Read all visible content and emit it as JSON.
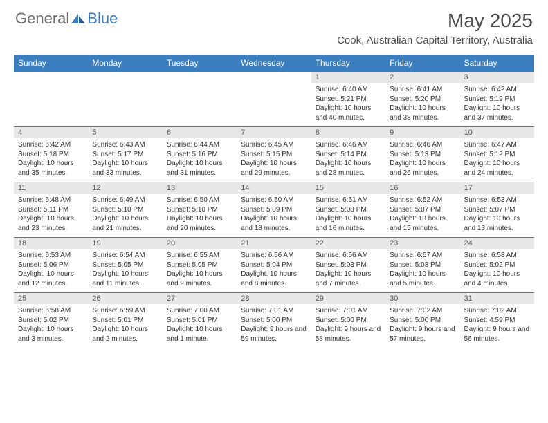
{
  "logo": {
    "text1": "General",
    "text2": "Blue"
  },
  "title": "May 2025",
  "location": "Cook, Australian Capital Territory, Australia",
  "colors": {
    "header_bg": "#3b7ec0",
    "header_text": "#ffffff",
    "daynum_bg": "#e8e8e8",
    "row_divider": "#3b7ec0",
    "logo_grey": "#6b6b6b",
    "logo_blue": "#3b7ec0"
  },
  "weekdays": [
    "Sunday",
    "Monday",
    "Tuesday",
    "Wednesday",
    "Thursday",
    "Friday",
    "Saturday"
  ],
  "weeks": [
    [
      null,
      null,
      null,
      null,
      {
        "n": "1",
        "sr": "6:40 AM",
        "ss": "5:21 PM",
        "dl": "10 hours and 40 minutes."
      },
      {
        "n": "2",
        "sr": "6:41 AM",
        "ss": "5:20 PM",
        "dl": "10 hours and 38 minutes."
      },
      {
        "n": "3",
        "sr": "6:42 AM",
        "ss": "5:19 PM",
        "dl": "10 hours and 37 minutes."
      }
    ],
    [
      {
        "n": "4",
        "sr": "6:42 AM",
        "ss": "5:18 PM",
        "dl": "10 hours and 35 minutes."
      },
      {
        "n": "5",
        "sr": "6:43 AM",
        "ss": "5:17 PM",
        "dl": "10 hours and 33 minutes."
      },
      {
        "n": "6",
        "sr": "6:44 AM",
        "ss": "5:16 PM",
        "dl": "10 hours and 31 minutes."
      },
      {
        "n": "7",
        "sr": "6:45 AM",
        "ss": "5:15 PM",
        "dl": "10 hours and 29 minutes."
      },
      {
        "n": "8",
        "sr": "6:46 AM",
        "ss": "5:14 PM",
        "dl": "10 hours and 28 minutes."
      },
      {
        "n": "9",
        "sr": "6:46 AM",
        "ss": "5:13 PM",
        "dl": "10 hours and 26 minutes."
      },
      {
        "n": "10",
        "sr": "6:47 AM",
        "ss": "5:12 PM",
        "dl": "10 hours and 24 minutes."
      }
    ],
    [
      {
        "n": "11",
        "sr": "6:48 AM",
        "ss": "5:11 PM",
        "dl": "10 hours and 23 minutes."
      },
      {
        "n": "12",
        "sr": "6:49 AM",
        "ss": "5:10 PM",
        "dl": "10 hours and 21 minutes."
      },
      {
        "n": "13",
        "sr": "6:50 AM",
        "ss": "5:10 PM",
        "dl": "10 hours and 20 minutes."
      },
      {
        "n": "14",
        "sr": "6:50 AM",
        "ss": "5:09 PM",
        "dl": "10 hours and 18 minutes."
      },
      {
        "n": "15",
        "sr": "6:51 AM",
        "ss": "5:08 PM",
        "dl": "10 hours and 16 minutes."
      },
      {
        "n": "16",
        "sr": "6:52 AM",
        "ss": "5:07 PM",
        "dl": "10 hours and 15 minutes."
      },
      {
        "n": "17",
        "sr": "6:53 AM",
        "ss": "5:07 PM",
        "dl": "10 hours and 13 minutes."
      }
    ],
    [
      {
        "n": "18",
        "sr": "6:53 AM",
        "ss": "5:06 PM",
        "dl": "10 hours and 12 minutes."
      },
      {
        "n": "19",
        "sr": "6:54 AM",
        "ss": "5:05 PM",
        "dl": "10 hours and 11 minutes."
      },
      {
        "n": "20",
        "sr": "6:55 AM",
        "ss": "5:05 PM",
        "dl": "10 hours and 9 minutes."
      },
      {
        "n": "21",
        "sr": "6:56 AM",
        "ss": "5:04 PM",
        "dl": "10 hours and 8 minutes."
      },
      {
        "n": "22",
        "sr": "6:56 AM",
        "ss": "5:03 PM",
        "dl": "10 hours and 7 minutes."
      },
      {
        "n": "23",
        "sr": "6:57 AM",
        "ss": "5:03 PM",
        "dl": "10 hours and 5 minutes."
      },
      {
        "n": "24",
        "sr": "6:58 AM",
        "ss": "5:02 PM",
        "dl": "10 hours and 4 minutes."
      }
    ],
    [
      {
        "n": "25",
        "sr": "6:58 AM",
        "ss": "5:02 PM",
        "dl": "10 hours and 3 minutes."
      },
      {
        "n": "26",
        "sr": "6:59 AM",
        "ss": "5:01 PM",
        "dl": "10 hours and 2 minutes."
      },
      {
        "n": "27",
        "sr": "7:00 AM",
        "ss": "5:01 PM",
        "dl": "10 hours and 1 minute."
      },
      {
        "n": "28",
        "sr": "7:01 AM",
        "ss": "5:00 PM",
        "dl": "9 hours and 59 minutes."
      },
      {
        "n": "29",
        "sr": "7:01 AM",
        "ss": "5:00 PM",
        "dl": "9 hours and 58 minutes."
      },
      {
        "n": "30",
        "sr": "7:02 AM",
        "ss": "5:00 PM",
        "dl": "9 hours and 57 minutes."
      },
      {
        "n": "31",
        "sr": "7:02 AM",
        "ss": "4:59 PM",
        "dl": "9 hours and 56 minutes."
      }
    ]
  ],
  "labels": {
    "sunrise": "Sunrise: ",
    "sunset": "Sunset: ",
    "daylight": "Daylight: "
  }
}
